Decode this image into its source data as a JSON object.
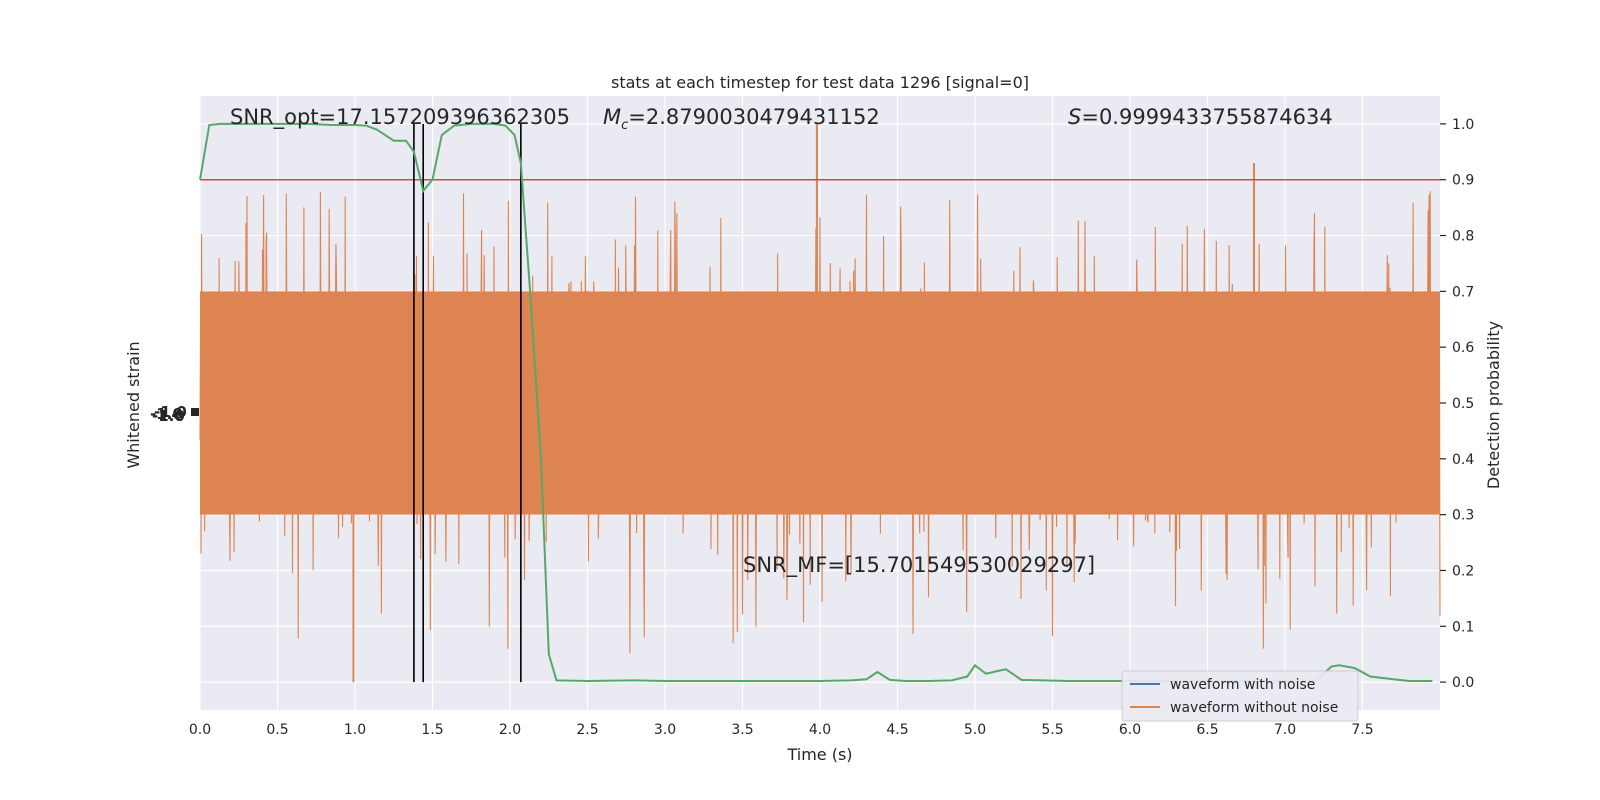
{
  "chart_data": {
    "type": "line",
    "title": "stats at each timestep for test data 1296 [signal=0]",
    "xlabel": "Time (s)",
    "ylabel_left": "Whitened strain",
    "ylabel_right": "Detection probability",
    "xlim": [
      0.0,
      8.0
    ],
    "ylim_right": [
      -0.05,
      1.05
    ],
    "grid": true,
    "legend_position": "lower-right",
    "x_ticks": [
      "0.0",
      "0.5",
      "1.0",
      "1.5",
      "2.0",
      "2.5",
      "3.0",
      "3.5",
      "4.0",
      "4.5",
      "5.0",
      "5.5",
      "6.0",
      "6.5",
      "7.0",
      "7.5"
    ],
    "y_right_ticks": [
      "0.0",
      "0.1",
      "0.2",
      "0.3",
      "0.4",
      "0.5",
      "0.6",
      "0.7",
      "0.8",
      "0.9",
      "1.0"
    ],
    "left_tick_text": "-1.0",
    "legend": [
      {
        "name": "waveform with noise",
        "color": "#4c72b0"
      },
      {
        "name": "waveform without noise",
        "color": "#dd8452"
      }
    ],
    "annotations": {
      "snr_opt": "SNR_opt=17.157209396362305",
      "mc_prefix": "M",
      "mc_sub": "c",
      "mc_value": "=2.8790030479431152",
      "s_prefix": "S",
      "s_value": "=0.9999433755874634",
      "snr_mf": "SNR_MF=[15.701549530029297]"
    },
    "threshold": {
      "y": 0.9,
      "color": "#c44e52"
    },
    "vertical_lines_x": [
      1.38,
      1.44,
      2.07
    ],
    "detection_probability": {
      "color": "#55a868",
      "x": [
        0.0,
        0.06,
        0.13,
        0.25,
        0.4,
        0.55,
        0.7,
        0.85,
        1.0,
        1.07,
        1.14,
        1.25,
        1.33,
        1.38,
        1.44,
        1.5,
        1.56,
        1.64,
        1.75,
        1.9,
        1.97,
        2.03,
        2.07,
        2.13,
        2.2,
        2.25,
        2.3,
        2.5,
        2.8,
        3.0,
        3.3,
        3.6,
        4.0,
        4.2,
        4.3,
        4.37,
        4.45,
        4.55,
        4.7,
        4.85,
        4.95,
        5.0,
        5.07,
        5.15,
        5.2,
        5.3,
        5.6,
        6.0,
        6.5,
        7.0,
        7.2,
        7.3,
        7.35,
        7.45,
        7.55,
        7.7,
        7.8,
        7.95
      ],
      "y": [
        0.9,
        0.998,
        1.0,
        1.0,
        1.0,
        1.0,
        1.0,
        0.998,
        0.998,
        0.997,
        0.99,
        0.97,
        0.97,
        0.95,
        0.88,
        0.9,
        0.98,
        0.997,
        1.0,
        1.0,
        0.997,
        0.98,
        0.93,
        0.7,
        0.4,
        0.05,
        0.003,
        0.002,
        0.003,
        0.002,
        0.002,
        0.002,
        0.002,
        0.003,
        0.005,
        0.018,
        0.004,
        0.002,
        0.002,
        0.003,
        0.01,
        0.03,
        0.015,
        0.02,
        0.023,
        0.004,
        0.002,
        0.002,
        0.002,
        0.002,
        0.003,
        0.028,
        0.03,
        0.025,
        0.01,
        0.005,
        0.002,
        0.002
      ]
    },
    "waveform_without_noise": {
      "color": "#dd8452",
      "description_range_prob_units": [
        0.0,
        1.0
      ],
      "core_band": [
        0.3,
        0.7
      ],
      "notable_spikes": [
        {
          "x": 0.99,
          "y": 0.0
        },
        {
          "x": 3.98,
          "y": 1.0
        },
        {
          "x": 6.8,
          "y": 0.93
        }
      ]
    }
  }
}
